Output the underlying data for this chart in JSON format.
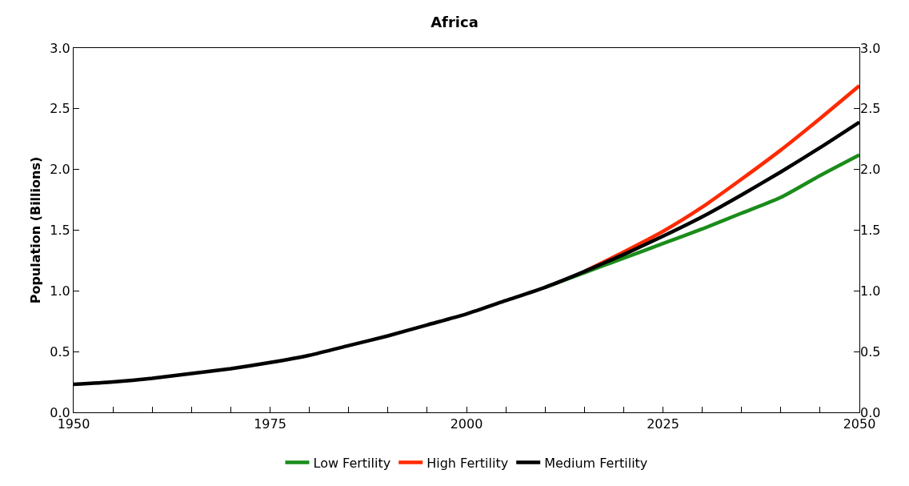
{
  "chart_data": {
    "type": "line",
    "title": "Africa",
    "ylabel": "Population (Billions)",
    "x": [
      1950,
      1955,
      1960,
      1965,
      1970,
      1975,
      1980,
      1985,
      1990,
      1995,
      2000,
      2005,
      2010,
      2015,
      2020,
      2025,
      2030,
      2035,
      2040,
      2045,
      2050
    ],
    "series": [
      {
        "name": "Low Fertility",
        "color": "#1a8c1a",
        "values": [
          null,
          null,
          null,
          null,
          null,
          null,
          null,
          null,
          null,
          null,
          null,
          null,
          1.03,
          1.15,
          1.27,
          1.39,
          1.51,
          1.64,
          1.77,
          1.95,
          2.12
        ]
      },
      {
        "name": "High Fertility",
        "color": "#ff2a00",
        "values": [
          null,
          null,
          null,
          null,
          null,
          null,
          null,
          null,
          null,
          null,
          null,
          null,
          null,
          1.16,
          1.32,
          1.49,
          1.69,
          1.92,
          2.16,
          2.42,
          2.69
        ]
      },
      {
        "name": "Medium Fertility",
        "color": "#000000",
        "values": [
          0.23,
          0.25,
          0.28,
          0.32,
          0.36,
          0.41,
          0.47,
          0.55,
          0.63,
          0.72,
          0.81,
          0.92,
          1.03,
          1.16,
          1.3,
          1.45,
          1.61,
          1.79,
          1.98,
          2.18,
          2.39
        ]
      }
    ],
    "xlim": [
      1950,
      2050
    ],
    "xticks": [
      1950,
      {
        "value": 1955,
        "label": null
      },
      {
        "value": 1960,
        "label": null
      },
      {
        "value": 1965,
        "label": null
      },
      {
        "value": 1970,
        "label": null
      },
      1975,
      {
        "value": 1980,
        "label": null
      },
      {
        "value": 1985,
        "label": null
      },
      {
        "value": 1990,
        "label": null
      },
      {
        "value": 1995,
        "label": null
      },
      2000,
      {
        "value": 2005,
        "label": null
      },
      {
        "value": 2010,
        "label": null
      },
      {
        "value": 2015,
        "label": null
      },
      {
        "value": 2020,
        "label": null
      },
      2025,
      {
        "value": 2030,
        "label": null
      },
      {
        "value": 2035,
        "label": null
      },
      {
        "value": 2040,
        "label": null
      },
      {
        "value": 2045,
        "label": null
      },
      2050
    ],
    "ylim": [
      0,
      3
    ],
    "yticks": [
      {
        "value": 0,
        "label": "0.0"
      },
      {
        "value": 0.5,
        "label": "0.5"
      },
      {
        "value": 1,
        "label": "1.0"
      },
      {
        "value": 1.5,
        "label": "1.5"
      },
      {
        "value": 2,
        "label": "2.0"
      },
      {
        "value": 2.5,
        "label": "2.5"
      },
      {
        "value": 3,
        "label": "3.0"
      }
    ],
    "y2lim": [
      0,
      3
    ],
    "y2ticks": [
      {
        "value": 0,
        "label": "0.0"
      },
      {
        "value": 0.5,
        "label": "0.5"
      },
      {
        "value": 1,
        "label": "1.0"
      },
      {
        "value": 1.5,
        "label": "1.5"
      },
      {
        "value": 2,
        "label": "2.0"
      },
      {
        "value": 2.5,
        "label": "2.5"
      },
      {
        "value": 3,
        "label": "3.0"
      }
    ],
    "grid": false,
    "legend": "bottom",
    "marker": "none",
    "line_style": "solid"
  }
}
